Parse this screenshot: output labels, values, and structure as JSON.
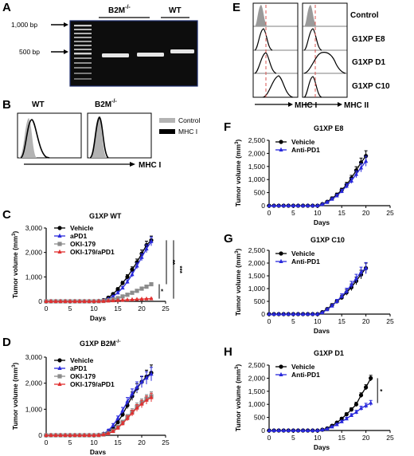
{
  "panelA": {
    "letter": "A",
    "ladder_labels": [
      "1,000 bp",
      "500 bp"
    ],
    "group_b2m": "B2M",
    "group_b2m_sup": "-/-",
    "group_wt": "WT"
  },
  "panelB": {
    "letter": "B",
    "title_wt": "WT",
    "title_b2m": "B2M",
    "title_b2m_sup": "-/-",
    "xlabel": "MHC I",
    "legend": [
      "Control",
      "MHC I"
    ],
    "colors": {
      "control": "#b3b3b3",
      "mhc": "#000000"
    }
  },
  "panelE": {
    "letter": "E",
    "rows": [
      "Control",
      "G1XP E8",
      "G1XP D1",
      "G1XP C10"
    ],
    "xlabels": [
      "MHC I",
      "MHC II"
    ],
    "dash_color": "#d9534f"
  },
  "chart_data": [
    {
      "panel": "C",
      "type": "line",
      "title": "G1XP WT",
      "xlabel": "Days",
      "ylabel": "Tumor volume (mm",
      "ylabel_sup": "3",
      "ylabel_end": ")",
      "xlim": [
        0,
        25
      ],
      "ylim": [
        0,
        3000
      ],
      "xticks": [
        0,
        5,
        10,
        15,
        20,
        25
      ],
      "yticks": [
        0,
        1000,
        2000,
        3000
      ],
      "ytick_labels": [
        "0",
        "1,000",
        "2,000",
        "3,000"
      ],
      "x": [
        0,
        1,
        2,
        3,
        4,
        5,
        6,
        7,
        8,
        9,
        10,
        11,
        12,
        13,
        14,
        15,
        16,
        17,
        18,
        19,
        20,
        21,
        22
      ],
      "series": [
        {
          "name": "Vehicle",
          "color": "#000000",
          "marker": "circle",
          "values": [
            0,
            0,
            0,
            0,
            0,
            0,
            0,
            0,
            0,
            0,
            0,
            10,
            50,
            150,
            300,
            500,
            750,
            1000,
            1300,
            1600,
            1950,
            2300,
            2500
          ],
          "err": [
            0,
            0,
            0,
            0,
            0,
            0,
            0,
            0,
            0,
            0,
            0,
            5,
            20,
            30,
            40,
            60,
            70,
            90,
            110,
            130,
            150,
            160,
            170
          ]
        },
        {
          "name": "aPD1",
          "color": "#2a2adb",
          "marker": "triangle",
          "values": [
            0,
            0,
            0,
            0,
            0,
            0,
            0,
            0,
            0,
            0,
            0,
            10,
            40,
            100,
            200,
            350,
            550,
            800,
            1100,
            1450,
            1800,
            2150,
            2450
          ],
          "err": [
            0,
            0,
            0,
            0,
            0,
            0,
            0,
            0,
            0,
            0,
            0,
            5,
            15,
            25,
            35,
            50,
            60,
            80,
            100,
            120,
            140,
            160,
            180
          ]
        },
        {
          "name": "OKI-179",
          "color": "#8c8c8c",
          "marker": "square",
          "values": [
            0,
            0,
            0,
            0,
            0,
            0,
            0,
            0,
            0,
            0,
            0,
            5,
            15,
            40,
            80,
            130,
            200,
            270,
            350,
            430,
            520,
            600,
            700
          ],
          "err": [
            0,
            0,
            0,
            0,
            0,
            0,
            0,
            0,
            0,
            0,
            0,
            2,
            5,
            10,
            15,
            20,
            25,
            30,
            40,
            45,
            50,
            55,
            60
          ]
        },
        {
          "name": "OKI-179/aPD1",
          "color": "#e03030",
          "marker": "triangle",
          "values": [
            0,
            0,
            0,
            0,
            0,
            0,
            0,
            0,
            0,
            0,
            0,
            5,
            10,
            20,
            30,
            40,
            50,
            60,
            70,
            80,
            90,
            100,
            110
          ],
          "err": [
            0,
            0,
            0,
            0,
            0,
            0,
            0,
            0,
            0,
            0,
            0,
            1,
            2,
            4,
            6,
            8,
            10,
            10,
            12,
            12,
            14,
            14,
            15
          ]
        }
      ],
      "annotations": [
        "*",
        "**",
        "***"
      ]
    },
    {
      "panel": "D",
      "type": "line",
      "title": "G1XP B2M",
      "title_sup": "-/-",
      "xlabel": "Days",
      "ylabel": "Tumor volume (mm",
      "ylabel_sup": "3",
      "ylabel_end": ")",
      "xlim": [
        0,
        25
      ],
      "ylim": [
        0,
        3000
      ],
      "xticks": [
        0,
        5,
        10,
        15,
        20,
        25
      ],
      "yticks": [
        0,
        1000,
        2000,
        3000
      ],
      "ytick_labels": [
        "0",
        "1,000",
        "2,000",
        "3,000"
      ],
      "x": [
        0,
        1,
        2,
        3,
        4,
        5,
        6,
        7,
        8,
        9,
        10,
        11,
        12,
        13,
        14,
        15,
        16,
        17,
        18,
        19,
        20,
        21,
        22
      ],
      "series": [
        {
          "name": "Vehicle",
          "color": "#000000",
          "marker": "circle",
          "values": [
            0,
            0,
            0,
            0,
            0,
            0,
            0,
            0,
            0,
            0,
            0,
            10,
            50,
            130,
            280,
            500,
            800,
            1150,
            1500,
            1800,
            2050,
            2250,
            2400
          ],
          "err": [
            0,
            0,
            0,
            0,
            0,
            0,
            0,
            0,
            0,
            0,
            0,
            5,
            20,
            40,
            60,
            80,
            100,
            130,
            160,
            180,
            200,
            250,
            300
          ]
        },
        {
          "name": "aPD1",
          "color": "#2a2adb",
          "marker": "triangle",
          "values": [
            0,
            0,
            0,
            0,
            0,
            0,
            0,
            0,
            0,
            0,
            0,
            10,
            60,
            180,
            380,
            650,
            950,
            1300,
            1600,
            1850,
            2050,
            2200,
            2350
          ],
          "err": [
            0,
            0,
            0,
            0,
            0,
            0,
            0,
            0,
            0,
            0,
            0,
            5,
            25,
            45,
            70,
            90,
            120,
            150,
            180,
            200,
            220,
            240,
            260
          ]
        },
        {
          "name": "OKI-179",
          "color": "#8c8c8c",
          "marker": "square",
          "values": [
            0,
            0,
            0,
            0,
            0,
            0,
            0,
            0,
            0,
            0,
            0,
            5,
            30,
            80,
            180,
            320,
            500,
            700,
            900,
            1100,
            1250,
            1400,
            1500
          ],
          "err": [
            0,
            0,
            0,
            0,
            0,
            0,
            0,
            0,
            0,
            0,
            0,
            3,
            10,
            20,
            40,
            60,
            80,
            100,
            120,
            140,
            150,
            160,
            170
          ]
        },
        {
          "name": "OKI-179/aPD1",
          "color": "#e03030",
          "marker": "triangle",
          "values": [
            0,
            0,
            0,
            0,
            0,
            0,
            0,
            0,
            0,
            0,
            0,
            5,
            25,
            70,
            150,
            280,
            450,
            650,
            850,
            1050,
            1200,
            1350,
            1450
          ],
          "err": [
            0,
            0,
            0,
            0,
            0,
            0,
            0,
            0,
            0,
            0,
            0,
            3,
            10,
            20,
            35,
            55,
            75,
            95,
            115,
            130,
            145,
            155,
            165
          ]
        }
      ]
    },
    {
      "panel": "F",
      "type": "line",
      "title": "G1XP E8",
      "xlabel": "Days",
      "ylabel": "Tumor volume (mm",
      "ylabel_sup": "3",
      "ylabel_end": ")",
      "xlim": [
        0,
        25
      ],
      "ylim": [
        0,
        2500
      ],
      "xticks": [
        0,
        5,
        10,
        15,
        20,
        25
      ],
      "yticks": [
        0,
        500,
        1000,
        1500,
        2000,
        2500
      ],
      "ytick_labels": [
        "0",
        "500",
        "1,000",
        "1,500",
        "2,000",
        "2,500"
      ],
      "x": [
        0,
        1,
        2,
        3,
        4,
        5,
        6,
        7,
        8,
        9,
        10,
        11,
        12,
        13,
        14,
        15,
        16,
        17,
        18,
        19,
        20
      ],
      "series": [
        {
          "name": "Vehicle",
          "color": "#000000",
          "marker": "circle",
          "values": [
            0,
            0,
            0,
            0,
            0,
            0,
            0,
            0,
            0,
            0,
            0,
            60,
            150,
            280,
            420,
            600,
            800,
            1050,
            1350,
            1650,
            1900
          ],
          "err": [
            0,
            0,
            0,
            0,
            0,
            0,
            0,
            0,
            0,
            0,
            0,
            20,
            30,
            50,
            60,
            70,
            90,
            110,
            140,
            170,
            200
          ]
        },
        {
          "name": "Anti-PD1",
          "color": "#2a2adb",
          "marker": "triangle",
          "values": [
            0,
            0,
            0,
            0,
            0,
            0,
            0,
            0,
            0,
            0,
            0,
            50,
            130,
            250,
            380,
            550,
            750,
            950,
            1200,
            1450,
            1700
          ],
          "err": [
            0,
            0,
            0,
            0,
            0,
            0,
            0,
            0,
            0,
            0,
            0,
            15,
            30,
            45,
            55,
            70,
            85,
            100,
            130,
            160,
            190
          ]
        }
      ]
    },
    {
      "panel": "G",
      "type": "line",
      "title": "G1XP C10",
      "xlabel": "Days",
      "ylabel": "Tumor volume (mm",
      "ylabel_sup": "3",
      "ylabel_end": ")",
      "xlim": [
        0,
        25
      ],
      "ylim": [
        0,
        2500
      ],
      "xticks": [
        0,
        5,
        10,
        15,
        20,
        25
      ],
      "yticks": [
        0,
        500,
        1000,
        1500,
        2000,
        2500
      ],
      "ytick_labels": [
        "0",
        "500",
        "1,000",
        "1,500",
        "2,000",
        "2,500"
      ],
      "x": [
        0,
        1,
        2,
        3,
        4,
        5,
        6,
        7,
        8,
        9,
        10,
        11,
        12,
        13,
        14,
        15,
        16,
        17,
        18,
        19,
        20
      ],
      "series": [
        {
          "name": "Vehicle",
          "color": "#000000",
          "marker": "circle",
          "values": [
            0,
            0,
            0,
            0,
            0,
            0,
            0,
            0,
            0,
            0,
            0,
            80,
            200,
            350,
            500,
            650,
            850,
            1050,
            1300,
            1550,
            1800
          ],
          "err": [
            0,
            0,
            0,
            0,
            0,
            0,
            0,
            0,
            0,
            0,
            0,
            20,
            40,
            60,
            70,
            90,
            110,
            130,
            150,
            170,
            200
          ]
        },
        {
          "name": "Anti-PD1",
          "color": "#2a2adb",
          "marker": "triangle",
          "values": [
            0,
            0,
            0,
            0,
            0,
            0,
            0,
            0,
            0,
            0,
            0,
            60,
            180,
            320,
            500,
            700,
            900,
            1150,
            1400,
            1650,
            1800
          ],
          "err": [
            0,
            0,
            0,
            0,
            0,
            0,
            0,
            0,
            0,
            0,
            0,
            20,
            35,
            55,
            75,
            95,
            115,
            135,
            160,
            190,
            220
          ]
        }
      ]
    },
    {
      "panel": "H",
      "type": "line",
      "title": "G1XP D1",
      "xlabel": "Days",
      "ylabel": "Tumor volume (mm",
      "ylabel_sup": "3",
      "ylabel_end": ")",
      "xlim": [
        0,
        25
      ],
      "ylim": [
        0,
        2500
      ],
      "xticks": [
        0,
        5,
        10,
        15,
        20,
        25
      ],
      "yticks": [
        0,
        500,
        1000,
        1500,
        2000,
        2500
      ],
      "ytick_labels": [
        "0",
        "500",
        "1,000",
        "1,500",
        "2,000",
        "2,500"
      ],
      "x": [
        0,
        1,
        2,
        3,
        4,
        5,
        6,
        7,
        8,
        9,
        10,
        11,
        12,
        13,
        14,
        15,
        16,
        17,
        18,
        19,
        20,
        21
      ],
      "series": [
        {
          "name": "Vehicle",
          "color": "#000000",
          "marker": "circle",
          "values": [
            0,
            0,
            0,
            0,
            0,
            0,
            0,
            0,
            0,
            0,
            0,
            30,
            80,
            180,
            300,
            450,
            620,
            800,
            1000,
            1350,
            1650,
            2000
          ],
          "err": [
            0,
            0,
            0,
            0,
            0,
            0,
            0,
            0,
            0,
            0,
            0,
            10,
            20,
            30,
            40,
            50,
            60,
            70,
            80,
            90,
            100,
            110
          ]
        },
        {
          "name": "Anti-PD1",
          "color": "#2a2adb",
          "marker": "triangle",
          "values": [
            0,
            0,
            0,
            0,
            0,
            0,
            0,
            0,
            0,
            0,
            0,
            25,
            60,
            140,
            230,
            340,
            450,
            580,
            700,
            850,
            950,
            1050
          ],
          "err": [
            0,
            0,
            0,
            0,
            0,
            0,
            0,
            0,
            0,
            0,
            0,
            8,
            15,
            25,
            35,
            45,
            55,
            60,
            70,
            80,
            90,
            100
          ]
        }
      ],
      "annotations": [
        "*"
      ]
    }
  ]
}
